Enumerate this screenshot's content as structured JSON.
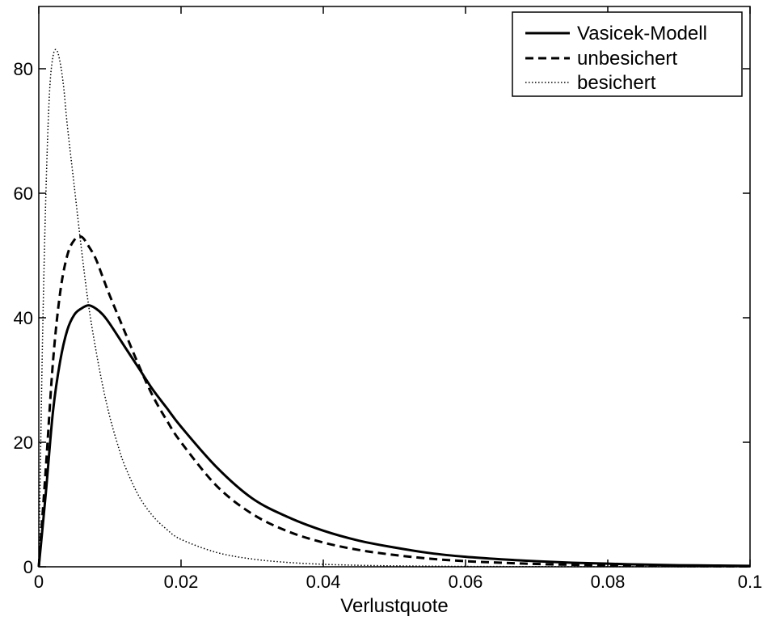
{
  "chart_data": {
    "type": "line",
    "title": "",
    "xlabel": "Verlustquote",
    "ylabel": "",
    "xlim": [
      0,
      0.1
    ],
    "ylim": [
      0,
      90
    ],
    "xticks": [
      0,
      0.02,
      0.04,
      0.06,
      0.08,
      0.1
    ],
    "xtick_labels": [
      "0",
      "0.02",
      "0.04",
      "0.06",
      "0.08",
      "0.1"
    ],
    "yticks": [
      0,
      20,
      40,
      60,
      80
    ],
    "ytick_labels": [
      "0",
      "20",
      "40",
      "60",
      "80"
    ],
    "grid": false,
    "legend_position": "top-right",
    "series": [
      {
        "name": "Vasicek-Modell",
        "style": "solid",
        "color": "#000000",
        "x": [
          0,
          0.001,
          0.002,
          0.003,
          0.004,
          0.005,
          0.006,
          0.007,
          0.008,
          0.009,
          0.01,
          0.012,
          0.014,
          0.016,
          0.018,
          0.02,
          0.025,
          0.03,
          0.035,
          0.04,
          0.045,
          0.05,
          0.055,
          0.06,
          0.065,
          0.07,
          0.075,
          0.08,
          0.085,
          0.09,
          0.095,
          0.1
        ],
        "y": [
          0,
          12,
          25,
          33,
          38,
          40.5,
          41.5,
          42,
          41.5,
          40.5,
          39,
          35.5,
          32,
          28.5,
          25.5,
          22.5,
          16,
          11,
          8,
          5.8,
          4.2,
          3.1,
          2.2,
          1.6,
          1.2,
          0.9,
          0.65,
          0.5,
          0.35,
          0.25,
          0.2,
          0.15
        ]
      },
      {
        "name": "unbesichert",
        "style": "dashed",
        "color": "#000000",
        "x": [
          0,
          0.001,
          0.002,
          0.003,
          0.004,
          0.005,
          0.006,
          0.007,
          0.008,
          0.009,
          0.01,
          0.012,
          0.014,
          0.016,
          0.018,
          0.02,
          0.025,
          0.03,
          0.035,
          0.04,
          0.045,
          0.05,
          0.055,
          0.06,
          0.065,
          0.07,
          0.075,
          0.08,
          0.085,
          0.09,
          0.095,
          0.1
        ],
        "y": [
          0,
          16,
          33,
          44,
          50,
          52.5,
          53,
          51.5,
          49.5,
          46.5,
          43.5,
          38,
          32.5,
          27.5,
          23.5,
          20,
          13,
          8.5,
          5.7,
          3.9,
          2.7,
          1.9,
          1.3,
          0.9,
          0.65,
          0.45,
          0.32,
          0.23,
          0.17,
          0.12,
          0.09,
          0.06
        ]
      },
      {
        "name": "besichert",
        "style": "dotted",
        "color": "#000000",
        "x": [
          0,
          0.0005,
          0.001,
          0.0015,
          0.002,
          0.0025,
          0.003,
          0.0035,
          0.004,
          0.005,
          0.006,
          0.007,
          0.008,
          0.009,
          0.01,
          0.011,
          0.012,
          0.014,
          0.016,
          0.018,
          0.02,
          0.025,
          0.03,
          0.035,
          0.04,
          0.045,
          0.05,
          0.055,
          0.06,
          0.07,
          0.08,
          0.09,
          0.1
        ],
        "y": [
          0,
          35,
          60,
          76,
          82,
          83,
          81,
          77,
          71,
          61,
          51,
          42,
          35,
          29,
          24,
          20,
          16.5,
          11.5,
          8.2,
          6,
          4.4,
          2.3,
          1.25,
          0.7,
          0.4,
          0.24,
          0.15,
          0.1,
          0.06,
          0.03,
          0.015,
          0.008,
          0.004
        ]
      }
    ]
  }
}
